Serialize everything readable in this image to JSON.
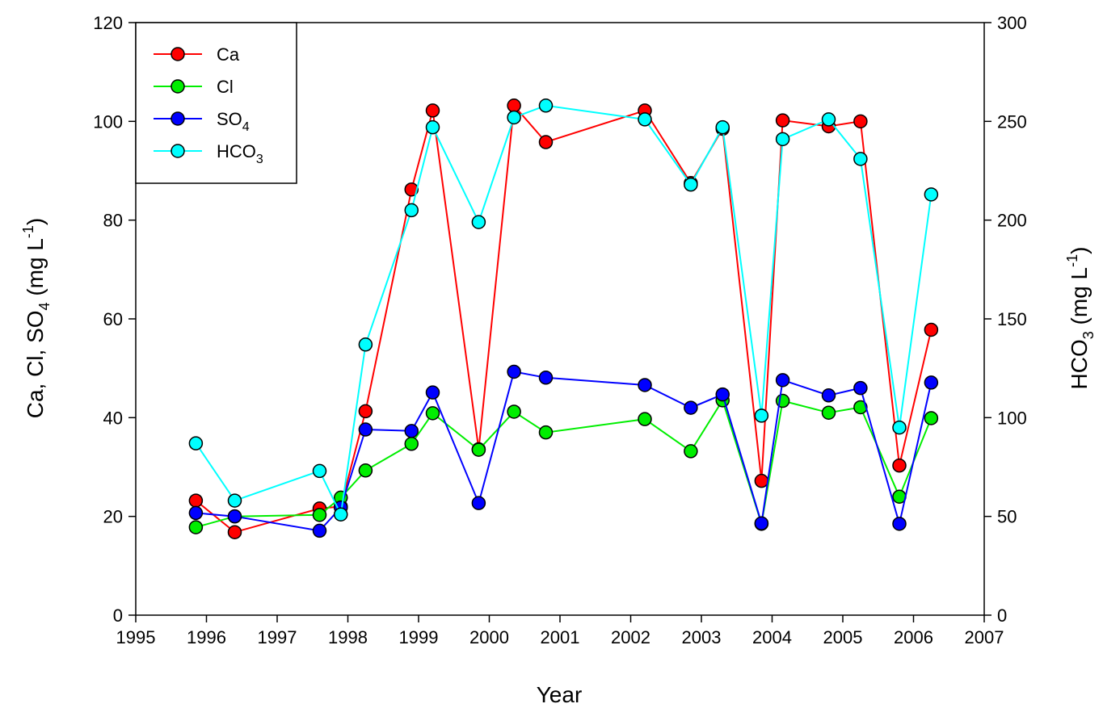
{
  "chart_data": {
    "type": "line",
    "xlabel": "Year",
    "ylabel_left": {
      "base": "Ca, Cl, SO",
      "sub": "4",
      "unit_pre": " (mg L",
      "sup": "-1",
      "unit_post": ")"
    },
    "ylabel_right": {
      "base": "HCO",
      "sub": "3",
      "unit_pre": " (mg L",
      "sup": "-1",
      "unit_post": ")"
    },
    "xlim": [
      1995,
      2007
    ],
    "ylim_left": [
      0,
      120
    ],
    "ylim_right": [
      0,
      300
    ],
    "x_ticks": [
      "1995",
      "1996",
      "1997",
      "1998",
      "1999",
      "2000",
      "2001",
      "2002",
      "2003",
      "2004",
      "2005",
      "2006",
      "2007"
    ],
    "y_ticks_left": [
      "0",
      "20",
      "40",
      "60",
      "80",
      "100",
      "120"
    ],
    "y_ticks_right": [
      "0",
      "50",
      "100",
      "150",
      "200",
      "250",
      "300"
    ],
    "legend_position": "top-left",
    "series": [
      {
        "name": "Ca",
        "name_sub": "",
        "color": "#ff0000",
        "axis": "left",
        "x": [
          1995.85,
          1996.4,
          1997.6,
          1997.9,
          1998.25,
          1998.9,
          1999.2,
          1999.85,
          2000.35,
          2000.8,
          2002.2,
          2002.85,
          2003.3,
          2003.85,
          2004.15,
          2004.8,
          2005.25,
          2005.8,
          2006.25
        ],
        "values": [
          23.2,
          16.8,
          21.6,
          22.0,
          41.3,
          86.2,
          102.2,
          33.6,
          103.2,
          95.8,
          102.2,
          87.5,
          98.5,
          27.2,
          100.2,
          99.0,
          100.0,
          30.3,
          57.8
        ]
      },
      {
        "name": "Cl",
        "name_sub": "",
        "color": "#00ee00",
        "axis": "left",
        "x": [
          1995.85,
          1996.4,
          1997.6,
          1997.9,
          1998.25,
          1998.9,
          1999.2,
          1999.85,
          2000.35,
          2000.8,
          2002.2,
          2002.85,
          2003.3,
          2003.85,
          2004.15,
          2004.8,
          2005.25,
          2005.8,
          2006.25
        ],
        "values": [
          17.8,
          20.0,
          20.3,
          23.8,
          29.3,
          34.7,
          40.9,
          33.5,
          41.2,
          37.0,
          39.7,
          33.2,
          43.5,
          18.5,
          43.4,
          41.0,
          42.1,
          24.0,
          39.9
        ]
      },
      {
        "name": "SO",
        "name_sub": "4",
        "color": "#0000ff",
        "axis": "left",
        "x": [
          1995.85,
          1996.4,
          1997.6,
          1997.9,
          1998.25,
          1998.9,
          1999.2,
          1999.85,
          2000.35,
          2000.8,
          2002.2,
          2002.85,
          2003.3,
          2003.85,
          2004.15,
          2004.8,
          2005.25,
          2005.8,
          2006.25
        ],
        "values": [
          20.7,
          20.0,
          17.1,
          21.8,
          37.6,
          37.3,
          45.1,
          22.7,
          49.3,
          48.1,
          46.6,
          42.0,
          44.7,
          18.6,
          47.6,
          44.5,
          46.0,
          18.5,
          47.1
        ]
      },
      {
        "name": "HCO",
        "name_sub": "3",
        "color": "#00ffff",
        "axis": "right",
        "x": [
          1995.85,
          1996.4,
          1997.6,
          1997.9,
          1998.25,
          1998.9,
          1999.2,
          1999.85,
          2000.35,
          2000.8,
          2002.2,
          2002.85,
          2003.3,
          2003.85,
          2004.15,
          2004.8,
          2005.25,
          2005.8,
          2006.25
        ],
        "values": [
          87,
          58,
          73,
          51,
          137,
          205,
          247,
          199,
          252,
          258,
          251,
          218,
          247,
          101,
          241,
          251,
          231,
          95,
          213
        ]
      }
    ]
  }
}
